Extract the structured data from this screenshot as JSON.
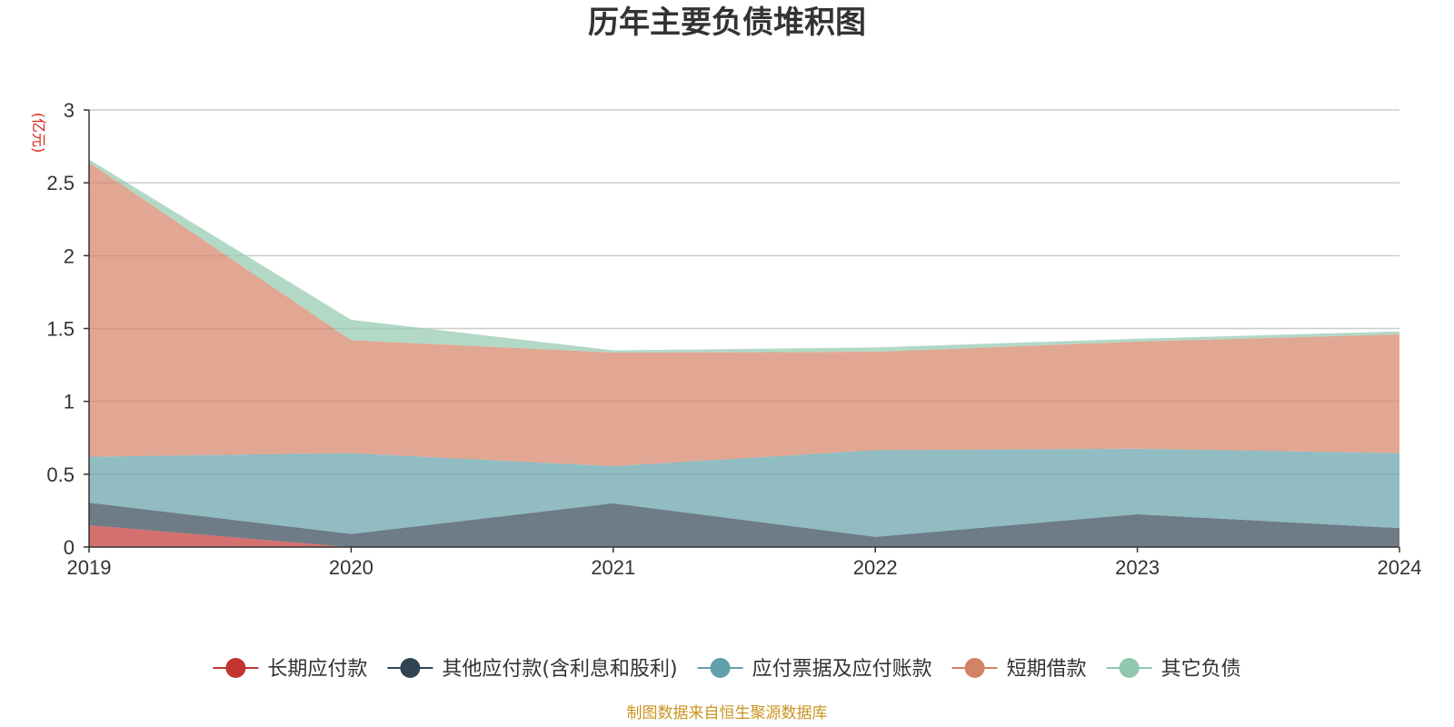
{
  "chart_data": {
    "type": "area",
    "stacked": true,
    "title": "历年主要负债堆积图",
    "y_unit": "(亿元)",
    "x": [
      "2019",
      "2020",
      "2021",
      "2022",
      "2023",
      "2024"
    ],
    "ylim": [
      0,
      3
    ],
    "yticks": [
      "0",
      "0.5",
      "1",
      "1.5",
      "2",
      "2.5",
      "3"
    ],
    "grid": true,
    "legend_position": "bottom",
    "series": [
      {
        "name": "长期应付款",
        "color": "#c23531",
        "values": [
          0.15,
          0.0,
          0.0,
          0.0,
          0.0,
          0.0
        ]
      },
      {
        "name": "其他应付款(含利息和股利)",
        "color": "#2f4554",
        "values": [
          0.155,
          0.09,
          0.3,
          0.07,
          0.225,
          0.13
        ]
      },
      {
        "name": "应付票据及应付账款",
        "color": "#61a0a8",
        "values": [
          0.315,
          0.555,
          0.255,
          0.595,
          0.45,
          0.515
        ]
      },
      {
        "name": "短期借款",
        "color": "#d48265",
        "values": [
          2.02,
          0.775,
          0.78,
          0.675,
          0.735,
          0.815
        ]
      },
      {
        "name": "其它负债",
        "color": "#91c7ae",
        "values": [
          0.02,
          0.14,
          0.015,
          0.03,
          0.02,
          0.02
        ]
      }
    ],
    "source_note": "制图数据来自恒生聚源数据库",
    "source_color": "#c9941e",
    "unit_color": "#e0201a"
  }
}
